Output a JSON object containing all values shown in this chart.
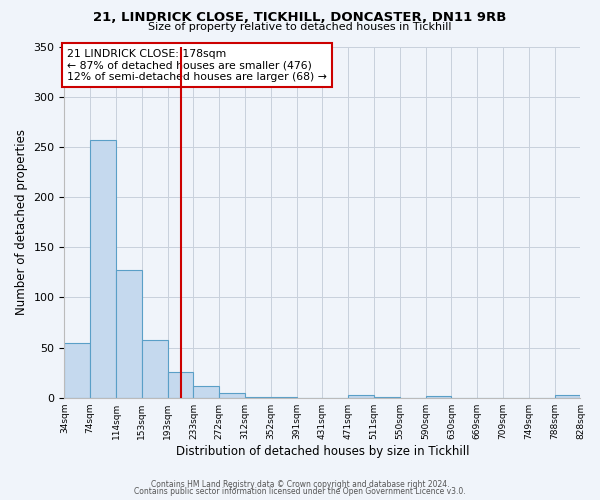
{
  "title1": "21, LINDRICK CLOSE, TICKHILL, DONCASTER, DN11 9RB",
  "title2": "Size of property relative to detached houses in Tickhill",
  "xlabel": "Distribution of detached houses by size in Tickhill",
  "ylabel": "Number of detached properties",
  "tick_labels": [
    "34sqm",
    "74sqm",
    "114sqm",
    "153sqm",
    "193sqm",
    "233sqm",
    "272sqm",
    "312sqm",
    "352sqm",
    "391sqm",
    "431sqm",
    "471sqm",
    "511sqm",
    "550sqm",
    "590sqm",
    "630sqm",
    "669sqm",
    "709sqm",
    "749sqm",
    "788sqm",
    "828sqm"
  ],
  "bar_heights": [
    55,
    257,
    127,
    58,
    26,
    12,
    5,
    1,
    1,
    0,
    0,
    3,
    1,
    0,
    2,
    0,
    0,
    0,
    0,
    3
  ],
  "bar_color": "#c5d9ee",
  "bar_edge_color": "#5a9fc7",
  "vline_x": 4.0,
  "vline_color": "#cc0000",
  "annotation_title": "21 LINDRICK CLOSE: 178sqm",
  "annotation_line1": "← 87% of detached houses are smaller (476)",
  "annotation_line2": "12% of semi-detached houses are larger (68) →",
  "annotation_box_color": "#cc0000",
  "ylim": [
    0,
    350
  ],
  "yticks": [
    0,
    50,
    100,
    150,
    200,
    250,
    300,
    350
  ],
  "footnote1": "Contains HM Land Registry data © Crown copyright and database right 2024.",
  "footnote2": "Contains public sector information licensed under the Open Government Licence v3.0.",
  "background_color": "#f0f4fa",
  "grid_color": "#c8d0dc"
}
